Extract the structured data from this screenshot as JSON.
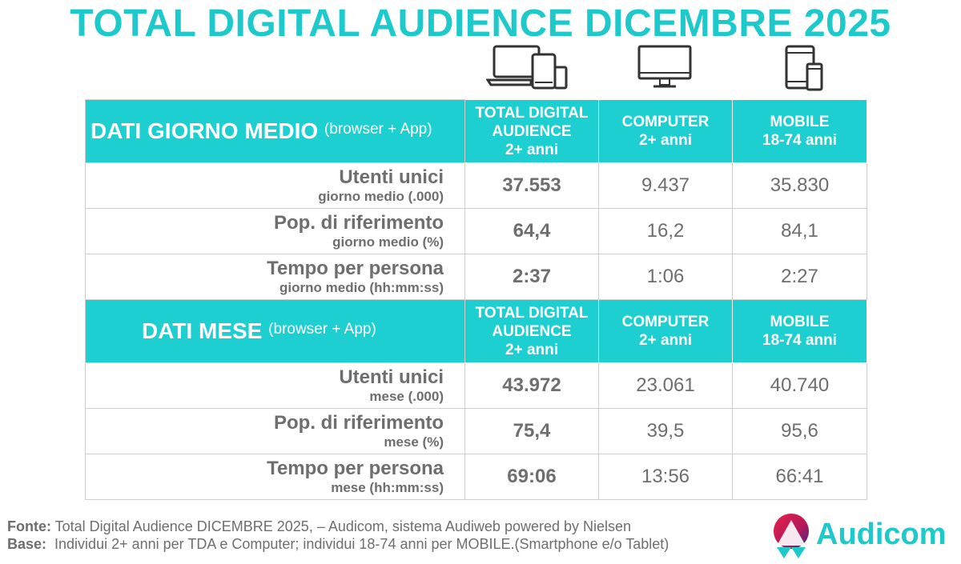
{
  "title": "TOTAL DIGITAL AUDIENCE DICEMBRE 2025",
  "icons": {
    "total": "devices-icon",
    "computer": "desktop-monitor-icon",
    "mobile": "smartphone-tablet-icon"
  },
  "colors": {
    "accent": "#1dcfd1",
    "title": "#1ec9cc",
    "text": "#6e6e6e"
  },
  "giorno": {
    "section_title": "DATI GIORNO MEDIO",
    "section_sub": "(browser + App)",
    "col_total": [
      "TOTAL DIGITAL",
      "AUDIENCE",
      "2+ anni"
    ],
    "col_computer": [
      "COMPUTER",
      "2+ anni"
    ],
    "col_mobile": [
      "MOBILE",
      "18-74 anni"
    ],
    "rows": [
      {
        "label": "Utenti unici",
        "sub": "giorno medio (.000)",
        "total": "37.553",
        "computer": "9.437",
        "mobile": "35.830"
      },
      {
        "label": "Pop. di riferimento",
        "sub": "giorno medio (%)",
        "total": "64,4",
        "computer": "16,2",
        "mobile": "84,1"
      },
      {
        "label": "Tempo per persona",
        "sub": "giorno medio (hh:mm:ss)",
        "total": "2:37",
        "computer": "1:06",
        "mobile": "2:27"
      }
    ]
  },
  "mese": {
    "section_title": "DATI MESE",
    "section_sub": "(browser + App)",
    "col_total": [
      "TOTAL DIGITAL",
      "AUDIENCE",
      "2+ anni"
    ],
    "col_computer": [
      "COMPUTER",
      "2+ anni"
    ],
    "col_mobile": [
      "MOBILE",
      "18-74 anni"
    ],
    "rows": [
      {
        "label": "Utenti unici",
        "sub": "mese (.000)",
        "total": "43.972",
        "computer": "23.061",
        "mobile": "40.740"
      },
      {
        "label": "Pop. di riferimento",
        "sub": "mese (%)",
        "total": "75,4",
        "computer": "39,5",
        "mobile": "95,6"
      },
      {
        "label": "Tempo per persona",
        "sub": "mese (hh:mm:ss)",
        "total": "69:06",
        "computer": "13:56",
        "mobile": "66:41"
      }
    ]
  },
  "footer": {
    "fonte_label": "Fonte:",
    "fonte_text": " Total Digital Audience DICEMBRE 2025, – Audicom, sistema Audiweb powered by Nielsen",
    "base_label": "Base:",
    "base_text": "  Individui 2+ anni per TDA e Computer; individui 18-74 anni per MOBILE.(Smartphone e/o Tablet)"
  },
  "logo": {
    "text": "Audicom"
  }
}
